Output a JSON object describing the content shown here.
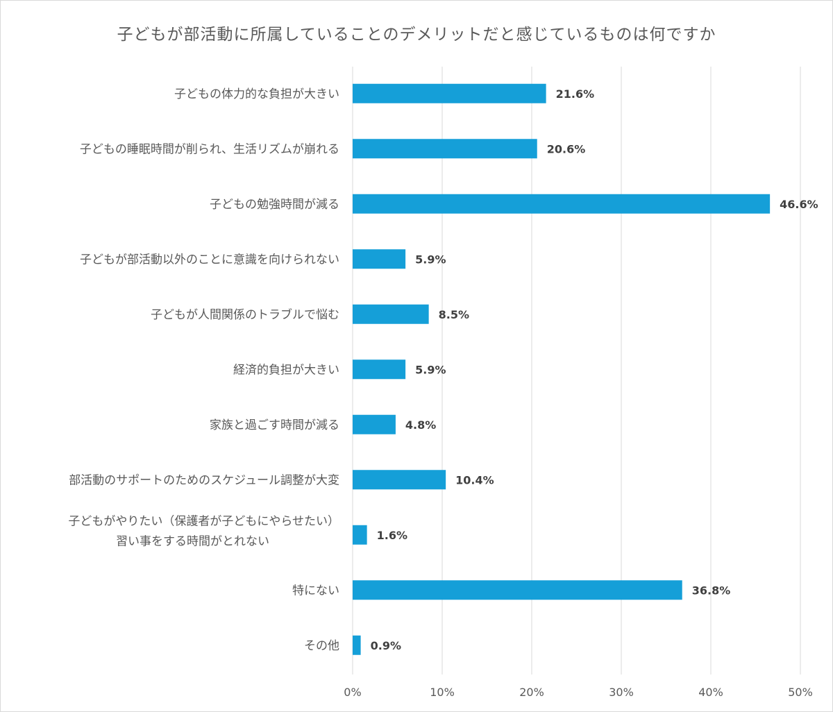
{
  "chart_data": {
    "type": "bar",
    "orientation": "horizontal",
    "title": "子どもが部活動に所属していることのデメリットだと感じているものは何ですか",
    "categories": [
      [
        "子どもの体力的な負担が大きい"
      ],
      [
        "子どもの睡眠時間が削られ、生活リズムが崩れる"
      ],
      [
        "子どもの勉強時間が減る"
      ],
      [
        "子どもが部活動以外のことに意識を向けられない"
      ],
      [
        "子どもが人間関係のトラブルで悩む"
      ],
      [
        "経済的負担が大きい"
      ],
      [
        "家族と過ごす時間が減る"
      ],
      [
        "部活動のサポートのためのスケジュール調整が大変"
      ],
      [
        "子どもがやりたい（保護者が子どもにやらせたい）",
        "習い事をする時間がとれない"
      ],
      [
        "特にない"
      ],
      [
        "その他"
      ]
    ],
    "values": [
      21.6,
      20.6,
      46.6,
      5.9,
      8.5,
      5.9,
      4.8,
      10.4,
      1.6,
      36.8,
      0.9
    ],
    "value_labels": [
      "21.6%",
      "20.6%",
      "46.6%",
      "5.9%",
      "8.5%",
      "5.9%",
      "4.8%",
      "10.4%",
      "1.6%",
      "36.8%",
      "0.9%"
    ],
    "xlim": [
      0,
      50
    ],
    "x_ticks": [
      0,
      10,
      20,
      30,
      40,
      50
    ],
    "x_tick_labels": [
      "0%",
      "10%",
      "20%",
      "30%",
      "40%",
      "50%"
    ],
    "grid": true,
    "legend": false,
    "colors": {
      "bar": "#159fd8",
      "grid": "#d9d9d9",
      "text": "#595959",
      "value_text": "#404040"
    }
  }
}
